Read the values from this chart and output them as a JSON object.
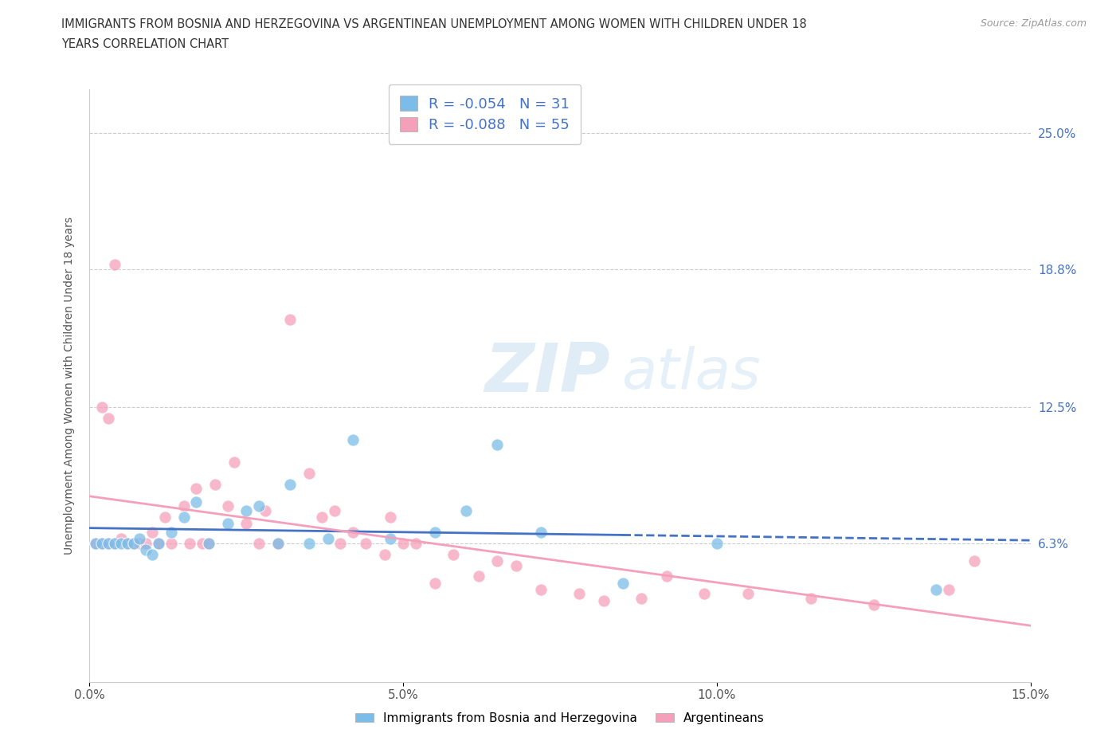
{
  "title_line1": "IMMIGRANTS FROM BOSNIA AND HERZEGOVINA VS ARGENTINEAN UNEMPLOYMENT AMONG WOMEN WITH CHILDREN UNDER 18",
  "title_line2": "YEARS CORRELATION CHART",
  "source": "Source: ZipAtlas.com",
  "ylabel": "Unemployment Among Women with Children Under 18 years",
  "xlim": [
    0.0,
    0.15
  ],
  "ylim": [
    0.0,
    0.27
  ],
  "yticks": [
    0.063,
    0.125,
    0.188,
    0.25
  ],
  "ytick_labels": [
    "6.3%",
    "12.5%",
    "18.8%",
    "25.0%"
  ],
  "xticks": [
    0.0,
    0.05,
    0.1,
    0.15
  ],
  "xtick_labels": [
    "0.0%",
    "5.0%",
    "10.0%",
    "15.0%"
  ],
  "legend1_label": "R = -0.054   N = 31",
  "legend2_label": "R = -0.088   N = 55",
  "legend_bottom_label1": "Immigrants from Bosnia and Herzegovina",
  "legend_bottom_label2": "Argentineans",
  "color_blue": "#7bbde8",
  "color_pink": "#f5a0bb",
  "watermark_zip": "ZIP",
  "watermark_atlas": "atlas",
  "blue_scatter_x": [
    0.001,
    0.002,
    0.003,
    0.004,
    0.005,
    0.006,
    0.007,
    0.008,
    0.009,
    0.01,
    0.011,
    0.013,
    0.015,
    0.017,
    0.019,
    0.022,
    0.025,
    0.027,
    0.03,
    0.032,
    0.035,
    0.038,
    0.042,
    0.048,
    0.055,
    0.06,
    0.065,
    0.072,
    0.085,
    0.1,
    0.135
  ],
  "blue_scatter_y": [
    0.063,
    0.063,
    0.063,
    0.063,
    0.063,
    0.063,
    0.063,
    0.065,
    0.06,
    0.058,
    0.063,
    0.068,
    0.075,
    0.082,
    0.063,
    0.072,
    0.078,
    0.08,
    0.063,
    0.09,
    0.063,
    0.065,
    0.11,
    0.065,
    0.068,
    0.078,
    0.108,
    0.068,
    0.045,
    0.063,
    0.042
  ],
  "pink_scatter_x": [
    0.001,
    0.002,
    0.003,
    0.004,
    0.005,
    0.006,
    0.007,
    0.008,
    0.009,
    0.01,
    0.011,
    0.012,
    0.013,
    0.015,
    0.016,
    0.017,
    0.018,
    0.019,
    0.02,
    0.022,
    0.023,
    0.025,
    0.027,
    0.028,
    0.03,
    0.032,
    0.035,
    0.037,
    0.039,
    0.04,
    0.042,
    0.044,
    0.047,
    0.048,
    0.05,
    0.052,
    0.055,
    0.058,
    0.062,
    0.065,
    0.068,
    0.072,
    0.078,
    0.082,
    0.088,
    0.092,
    0.098,
    0.105,
    0.115,
    0.125,
    0.002,
    0.003,
    0.004,
    0.137,
    0.141
  ],
  "pink_scatter_y": [
    0.063,
    0.063,
    0.063,
    0.063,
    0.065,
    0.063,
    0.063,
    0.063,
    0.063,
    0.068,
    0.063,
    0.075,
    0.063,
    0.08,
    0.063,
    0.088,
    0.063,
    0.063,
    0.09,
    0.08,
    0.1,
    0.072,
    0.063,
    0.078,
    0.063,
    0.165,
    0.095,
    0.075,
    0.078,
    0.063,
    0.068,
    0.063,
    0.058,
    0.075,
    0.063,
    0.063,
    0.045,
    0.058,
    0.048,
    0.055,
    0.053,
    0.042,
    0.04,
    0.037,
    0.038,
    0.048,
    0.04,
    0.04,
    0.038,
    0.035,
    0.125,
    0.12,
    0.19,
    0.042,
    0.055
  ]
}
